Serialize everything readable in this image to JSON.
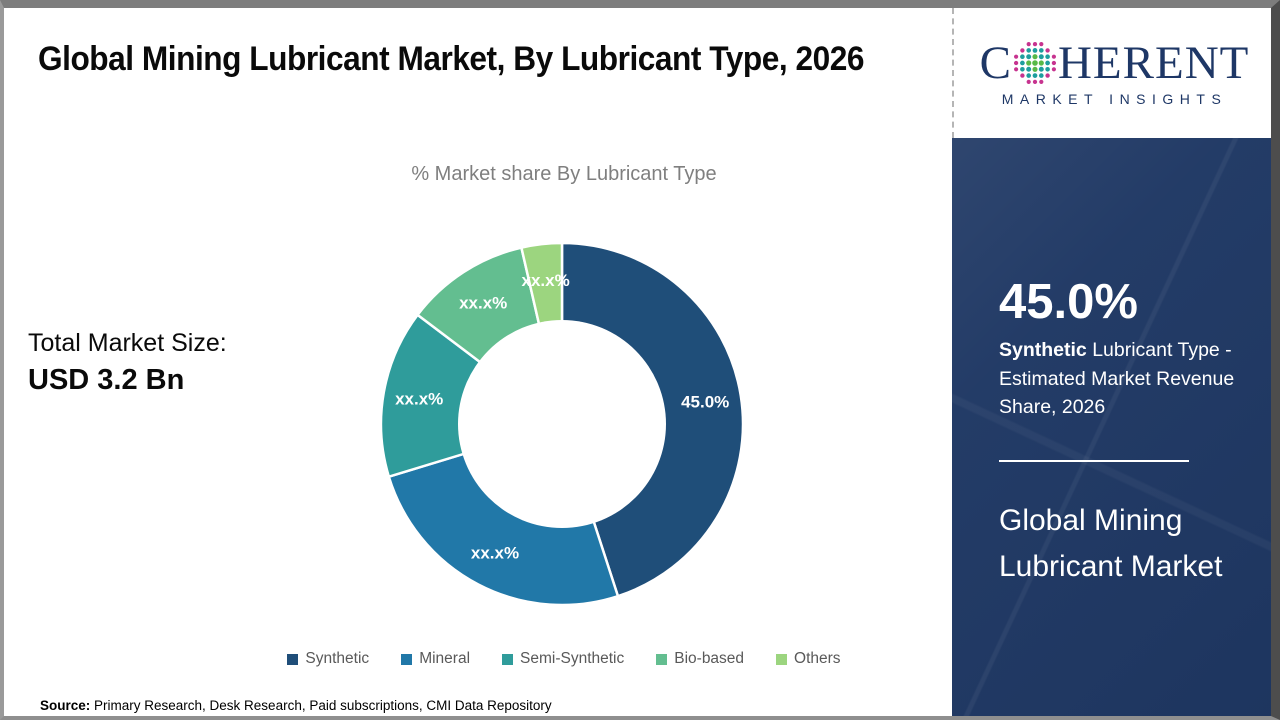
{
  "header": {
    "title": "Global Mining Lubricant Market, By Lubricant Type, 2026"
  },
  "chart_data": {
    "type": "pie",
    "donut": true,
    "title": "% Market share By Lubricant Type",
    "categories": [
      "Synthetic",
      "Mineral",
      "Semi-Synthetic",
      "Bio-based",
      "Others"
    ],
    "values": [
      45.0,
      25.3,
      15.0,
      11.1,
      3.6
    ],
    "slice_labels": [
      "45.0%",
      "xx.x%",
      "xx.x%",
      "xx.x%",
      "xx.x%"
    ],
    "colors": [
      "#1f4e79",
      "#2178a8",
      "#2f9c9b",
      "#63be90",
      "#9cd57f"
    ],
    "legend_position": "bottom",
    "legend_text_color": "#595959",
    "slice_label_color": "#ffffff"
  },
  "market_size": {
    "label": "Total Market Size:",
    "value": "USD 3.2 Bn"
  },
  "source": {
    "label": "Source:",
    "text": " Primary Research, Desk Research, Paid subscriptions, CMI Data Repository"
  },
  "logo": {
    "part1": "C",
    "part2": "HERENT",
    "subtitle": "MARKET INSIGHTS",
    "text_color": "#1e3766",
    "globe_colors": {
      "inner": "#58b947",
      "mid": "#1e9e9e",
      "outer": "#c7338f"
    }
  },
  "sidebar": {
    "bg_color": "#1f3864",
    "stat_value": "45.0%",
    "stat_bold": "Synthetic",
    "stat_rest": " Lubricant Type - Estimated Market Revenue Share, 2026",
    "panel_title": "Global Mining Lubricant Market"
  }
}
